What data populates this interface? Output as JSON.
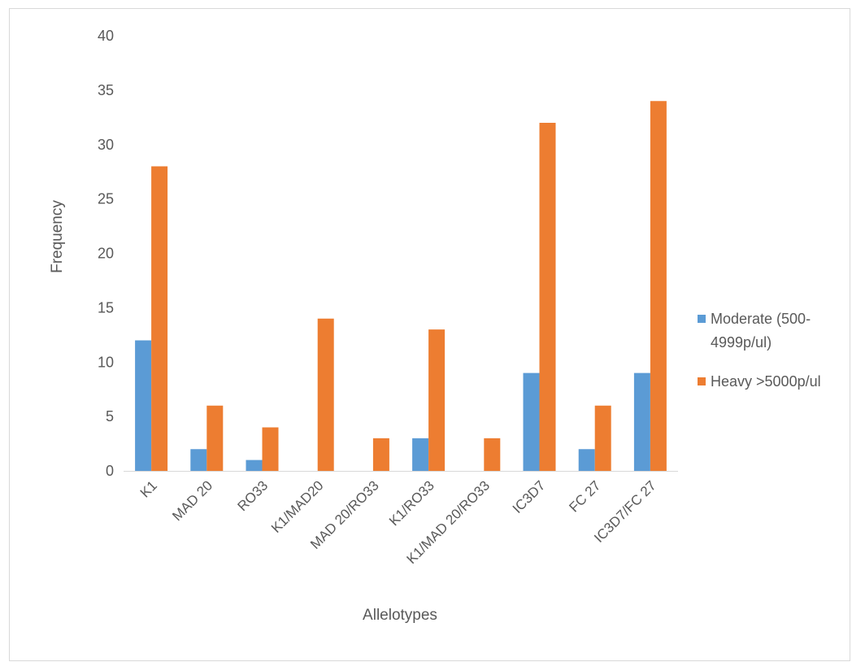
{
  "chart_data": {
    "type": "bar",
    "title": "",
    "xlabel": "Allelotypes",
    "ylabel": "Frequency",
    "ylim": [
      0,
      40
    ],
    "yticks": [
      0,
      5,
      10,
      15,
      20,
      25,
      30,
      35,
      40
    ],
    "grid": false,
    "legend_position": "right",
    "categories": [
      "K1",
      "MAD 20",
      "RO33",
      "K1/MAD20",
      "MAD 20/RO33",
      "K1/RO33",
      "K1/MAD 20/RO33",
      "IC3D7",
      "FC 27",
      "IC3D7/FC 27"
    ],
    "series": [
      {
        "name": "Moderate (500-4999p/ul)",
        "legend_lines": [
          "Moderate (500-",
          "4999p/ul)"
        ],
        "color": "#5B9BD5",
        "values": [
          12,
          2,
          1,
          0,
          0,
          3,
          0,
          9,
          2,
          9
        ]
      },
      {
        "name": "Heavy >5000p/ul",
        "legend_lines": [
          "Heavy >5000p/ul"
        ],
        "color": "#ED7D31",
        "values": [
          28,
          6,
          4,
          14,
          3,
          13,
          3,
          32,
          6,
          34
        ]
      }
    ]
  }
}
